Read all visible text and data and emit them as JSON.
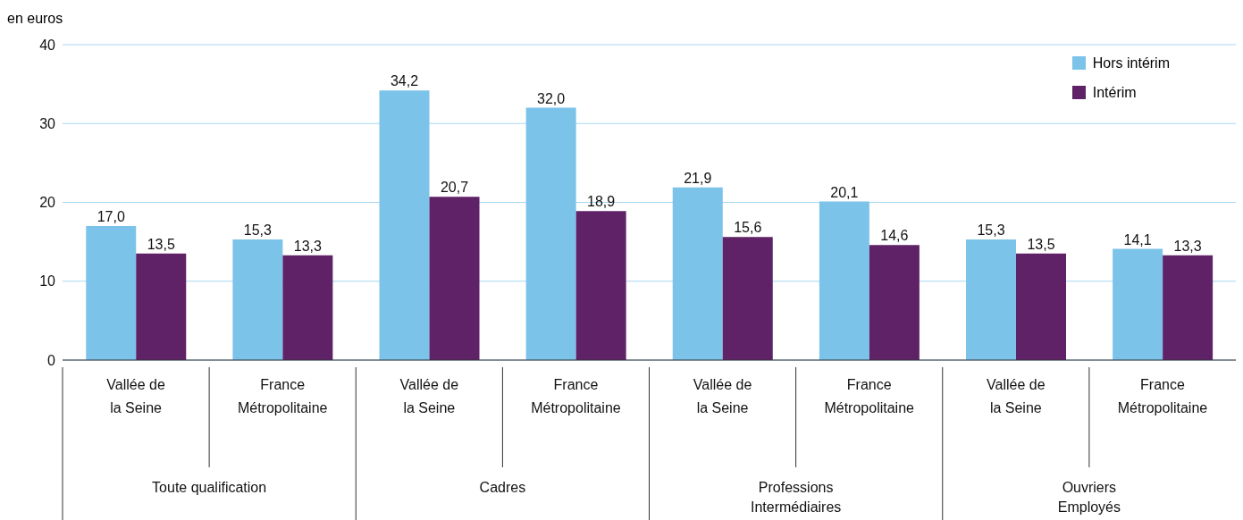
{
  "chart_data": {
    "type": "bar",
    "ylabel": "en euros",
    "categories": [
      "Vallée de\nla Seine",
      "France\nMétropolitaine",
      "Vallée de\nla Seine",
      "France\nMétropolitaine",
      "Vallée de\nla Seine",
      "France\nMétropolitaine",
      "Vallée de\nla Seine",
      "France\nMétropolitaine"
    ],
    "series": [
      {
        "name": "Hors intérim",
        "color": "#7cc3ea",
        "values": [
          17.0,
          15.3,
          34.2,
          32.0,
          21.9,
          20.1,
          15.3,
          14.1
        ],
        "value_labels": [
          "17,0",
          "15,3",
          "34,2",
          "32,0",
          "21,9",
          "20,1",
          "15,3",
          "14,1"
        ]
      },
      {
        "name": "Intérim",
        "color": "#5f2266",
        "values": [
          13.5,
          13.3,
          20.7,
          18.9,
          15.6,
          14.6,
          13.5,
          13.3
        ],
        "value_labels": [
          "13,5",
          "13,3",
          "20,7",
          "18,9",
          "15,6",
          "14,6",
          "13,5",
          "13,3"
        ]
      }
    ],
    "annotations": [
      "Toute qualification",
      "Cadres",
      "Professions\nIntermédiaires",
      "Ouvriers\nEmployés"
    ],
    "ylim": [
      0,
      40
    ],
    "yticks": [
      0,
      10,
      20,
      30,
      40
    ],
    "grid": "y",
    "legend": "top right"
  }
}
